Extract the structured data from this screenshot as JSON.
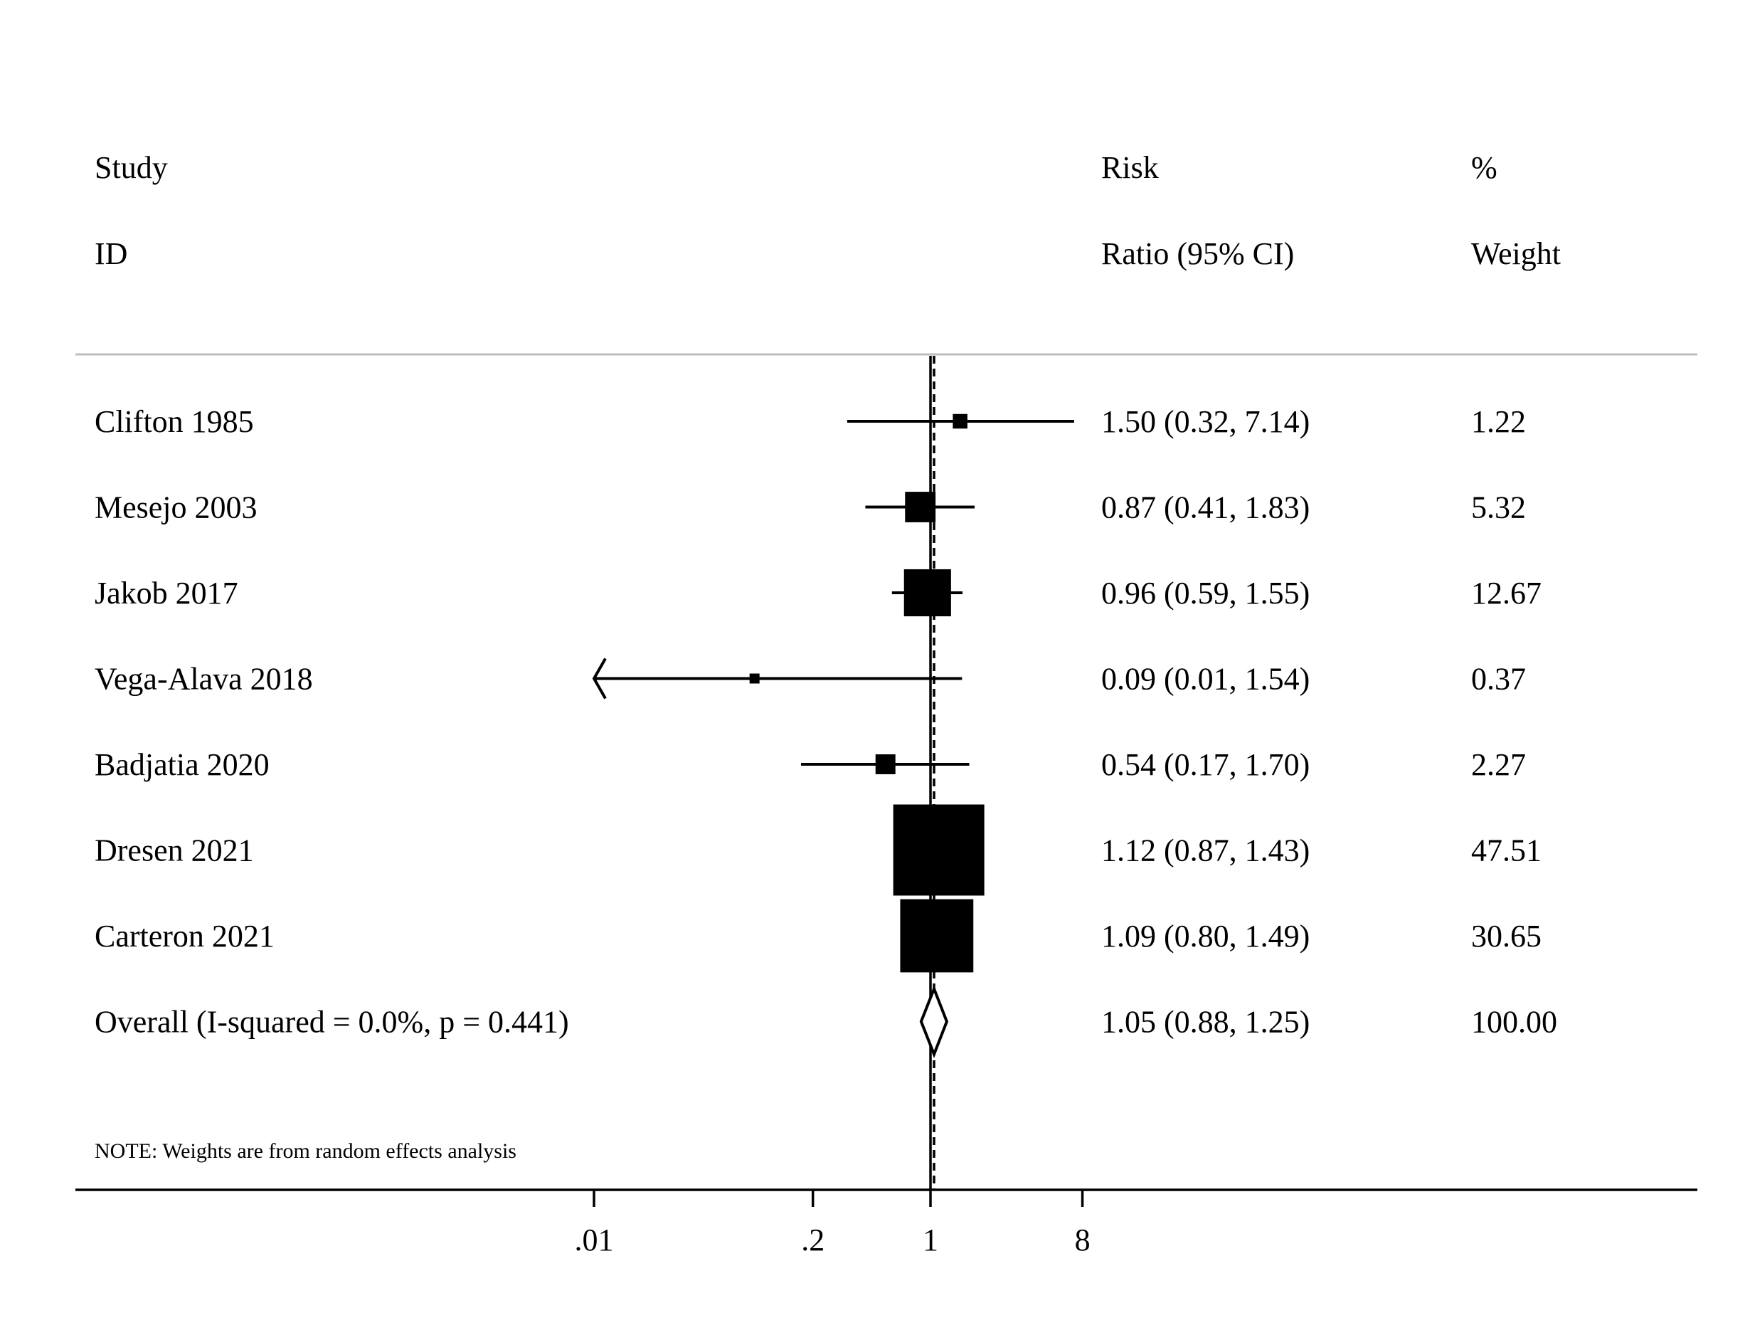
{
  "chart_data": {
    "type": "forest",
    "x_scale": "log",
    "x_ticks": [
      {
        "value": 0.01,
        "label": ".01"
      },
      {
        "value": 0.2,
        "label": ".2"
      },
      {
        "value": 1,
        "label": "1"
      },
      {
        "value": 8,
        "label": "8"
      }
    ],
    "reference_line": 1,
    "headers": {
      "study_line1": "Study",
      "study_line2": "ID",
      "effect_line1": "Risk",
      "effect_line2": "Ratio (95% CI)",
      "weight_line1": "%",
      "weight_line2": "Weight"
    },
    "studies": [
      {
        "label": "Clifton 1985",
        "rr": 1.5,
        "lo": 0.32,
        "hi": 7.14,
        "ci_text": "1.50 (0.32, 7.14)",
        "weight": 1.22,
        "weight_text": "1.22"
      },
      {
        "label": "Mesejo 2003",
        "rr": 0.87,
        "lo": 0.41,
        "hi": 1.83,
        "ci_text": "0.87 (0.41, 1.83)",
        "weight": 5.32,
        "weight_text": "5.32"
      },
      {
        "label": "Jakob 2017",
        "rr": 0.96,
        "lo": 0.59,
        "hi": 1.55,
        "ci_text": "0.96 (0.59, 1.55)",
        "weight": 12.67,
        "weight_text": "12.67"
      },
      {
        "label": "Vega-Alava 2018",
        "rr": 0.09,
        "lo": 0.01,
        "hi": 1.54,
        "ci_text": "0.09 (0.01, 1.54)",
        "weight": 0.37,
        "weight_text": "0.37",
        "arrow_left": true
      },
      {
        "label": "Badjatia 2020",
        "rr": 0.54,
        "lo": 0.17,
        "hi": 1.7,
        "ci_text": "0.54 (0.17, 1.70)",
        "weight": 2.27,
        "weight_text": "2.27"
      },
      {
        "label": "Dresen 2021",
        "rr": 1.12,
        "lo": 0.87,
        "hi": 1.43,
        "ci_text": "1.12 (0.87, 1.43)",
        "weight": 47.51,
        "weight_text": "47.51"
      },
      {
        "label": "Carteron 2021",
        "rr": 1.09,
        "lo": 0.8,
        "hi": 1.49,
        "ci_text": "1.09 (0.80, 1.49)",
        "weight": 30.65,
        "weight_text": "30.65"
      }
    ],
    "overall": {
      "label": "Overall  (I-squared = 0.0%, p = 0.441)",
      "rr": 1.05,
      "lo": 0.88,
      "hi": 1.25,
      "ci_text": "1.05 (0.88, 1.25)",
      "weight_text": "100.00"
    },
    "note": "NOTE: Weights are from random effects analysis"
  }
}
